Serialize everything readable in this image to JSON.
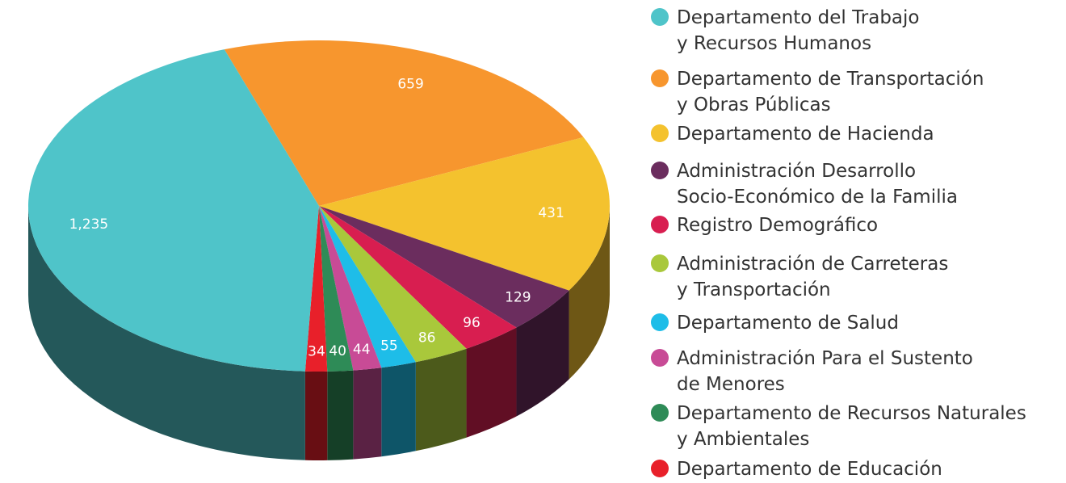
{
  "chart_data": {
    "type": "pie",
    "categories": [
      "Departamento de Transportación\ny Obras Públicas",
      "Departamento de Hacienda",
      "Administración Desarrollo\nSocio-Económico de la Familia",
      "Registro Demográfico",
      "Administración de Carreteras\ny Transportación",
      "Departamento de Salud",
      "Administración Para el Sustento\nde Menores",
      "Departamento de Recursos Naturales\ny Ambientales",
      "Departamento de Educación",
      "Departamento del Trabajo\ny Recursos Humanos"
    ],
    "values": [
      659,
      431,
      129,
      96,
      86,
      55,
      44,
      40,
      34,
      1235
    ],
    "value_labels": [
      "659",
      "431",
      "129",
      "96",
      "86",
      "55",
      "44",
      "40",
      "34",
      "1,235"
    ],
    "colors": [
      "#f7962e",
      "#f4c22e",
      "#6b2d5e",
      "#d81e50",
      "#a9c83b",
      "#1ebde8",
      "#c84b96",
      "#2e8b57",
      "#e8202a",
      "#4fc4c9"
    ]
  }
}
